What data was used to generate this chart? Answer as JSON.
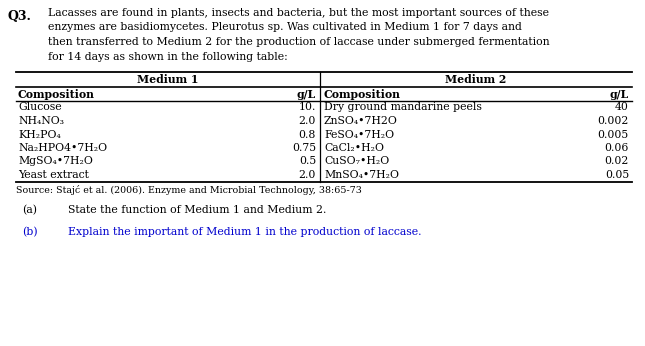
{
  "question_number": "Q3.",
  "question_text": "Lacasses are found in plants, insects and bacteria, but the most important sources of these\nenzymes are basidiomycetes. Pleurotus sp. Was cultivated in Medium 1 for 7 days and\nthen transferred to Medium 2 for the production of laccase under submerged fermentation\nfor 14 days as shown in the following table:",
  "medium1_header": "Medium 1",
  "medium2_header": "Medium 2",
  "col_headers": [
    "Composition",
    "g/L",
    "Composition",
    "g/L"
  ],
  "medium1_rows": [
    [
      "Glucose",
      "10."
    ],
    [
      "NH₄NO₃",
      "2.0"
    ],
    [
      "KH₂PO₄",
      "0.8"
    ],
    [
      "Na₂HPO4•7H₂O",
      "0.75"
    ],
    [
      "MgSO₄•7H₂O",
      "0.5"
    ],
    [
      "Yeast extract",
      "2.0"
    ]
  ],
  "medium2_rows": [
    [
      "Dry ground mandarine peels",
      "40"
    ],
    [
      "ZnSO₄•7H2O",
      "0.002"
    ],
    [
      "FeSO₄•7H₂O",
      "0.005"
    ],
    [
      "CaCl₂•H₂O",
      "0.06"
    ],
    [
      "CuSO₇•H₂O",
      "0.02"
    ],
    [
      "MnSO₄•7H₂O",
      "0.05"
    ]
  ],
  "source_text": "Source: Stajć et al. (2006). Enzyme and Microbial Technology, 38:65-73",
  "part_a_label": "(a)",
  "part_a_text": "State the function of Medium 1 and Medium 2.",
  "part_b_label": "(b)",
  "part_b_text": "Explain the important of Medium 1 in the production of laccase.",
  "bg_color": "#ffffff",
  "text_color": "#000000",
  "blue_color": "#0000cd"
}
